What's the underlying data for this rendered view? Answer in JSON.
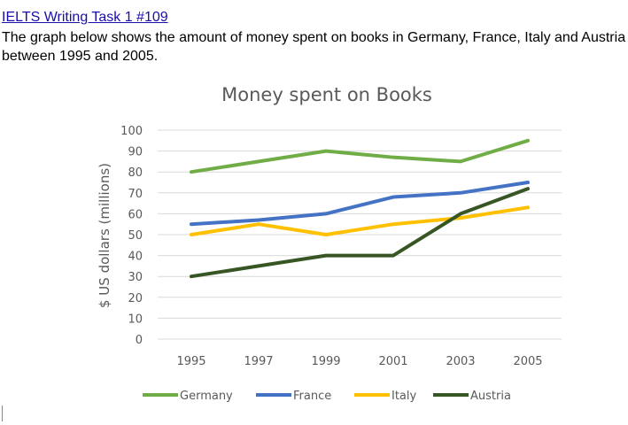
{
  "header": {
    "link_text": "IELTS Writing Task 1 #109",
    "description": "The graph below shows the amount of money spent on books in Germany, France, Italy and Austria between 1995 and 2005."
  },
  "chart_data": {
    "type": "line",
    "title": "Money spent on Books",
    "xlabel": "",
    "ylabel": "$ US dollars (millions)",
    "x": [
      "1995",
      "1997",
      "1999",
      "2001",
      "2003",
      "2005"
    ],
    "ylim": [
      0,
      100
    ],
    "yticks": [
      0,
      10,
      20,
      30,
      40,
      50,
      60,
      70,
      80,
      90,
      100
    ],
    "grid": true,
    "legend_position": "bottom",
    "series": [
      {
        "name": "Germany",
        "color": "#70ad47",
        "values": [
          80,
          85,
          90,
          87,
          85,
          95
        ]
      },
      {
        "name": "France",
        "color": "#4472c4",
        "values": [
          55,
          57,
          60,
          68,
          70,
          75
        ]
      },
      {
        "name": "Italy",
        "color": "#ffc000",
        "values": [
          50,
          55,
          50,
          55,
          58,
          63
        ]
      },
      {
        "name": "Austria",
        "color": "#375623",
        "values": [
          30,
          35,
          40,
          40,
          60,
          72
        ]
      }
    ]
  }
}
